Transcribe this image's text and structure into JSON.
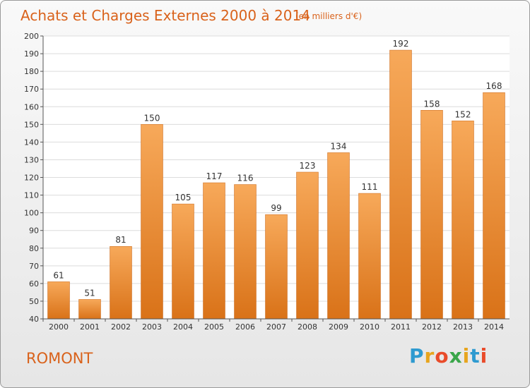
{
  "chart_data": {
    "type": "bar",
    "title": "Achats et Charges Externes 2000 à 2014",
    "subtitle": "(en milliers d'€)",
    "categories": [
      "2000",
      "2001",
      "2002",
      "2003",
      "2004",
      "2005",
      "2006",
      "2007",
      "2008",
      "2009",
      "2010",
      "2011",
      "2012",
      "2013",
      "2014"
    ],
    "values": [
      61,
      51,
      81,
      150,
      105,
      117,
      116,
      99,
      123,
      134,
      111,
      192,
      158,
      152,
      168
    ],
    "ylim": [
      40,
      200
    ],
    "yticks": [
      40,
      50,
      60,
      70,
      80,
      90,
      100,
      110,
      120,
      130,
      140,
      150,
      160,
      170,
      180,
      190,
      200
    ],
    "grid": true,
    "bar_color_top": "#f7a95a",
    "bar_color_bottom": "#d97218"
  },
  "commune": "ROMONT",
  "logo": {
    "letters": [
      "P",
      "r",
      "o",
      "x",
      "i",
      "t",
      "i"
    ],
    "colors": [
      "#2e9ad0",
      "#e7a51e",
      "#e94b2a",
      "#3aa64a",
      "#e7a51e",
      "#2e9ad0",
      "#e94b2a"
    ]
  },
  "colors": {
    "title": "#d9621b",
    "commune": "#d9621b"
  }
}
